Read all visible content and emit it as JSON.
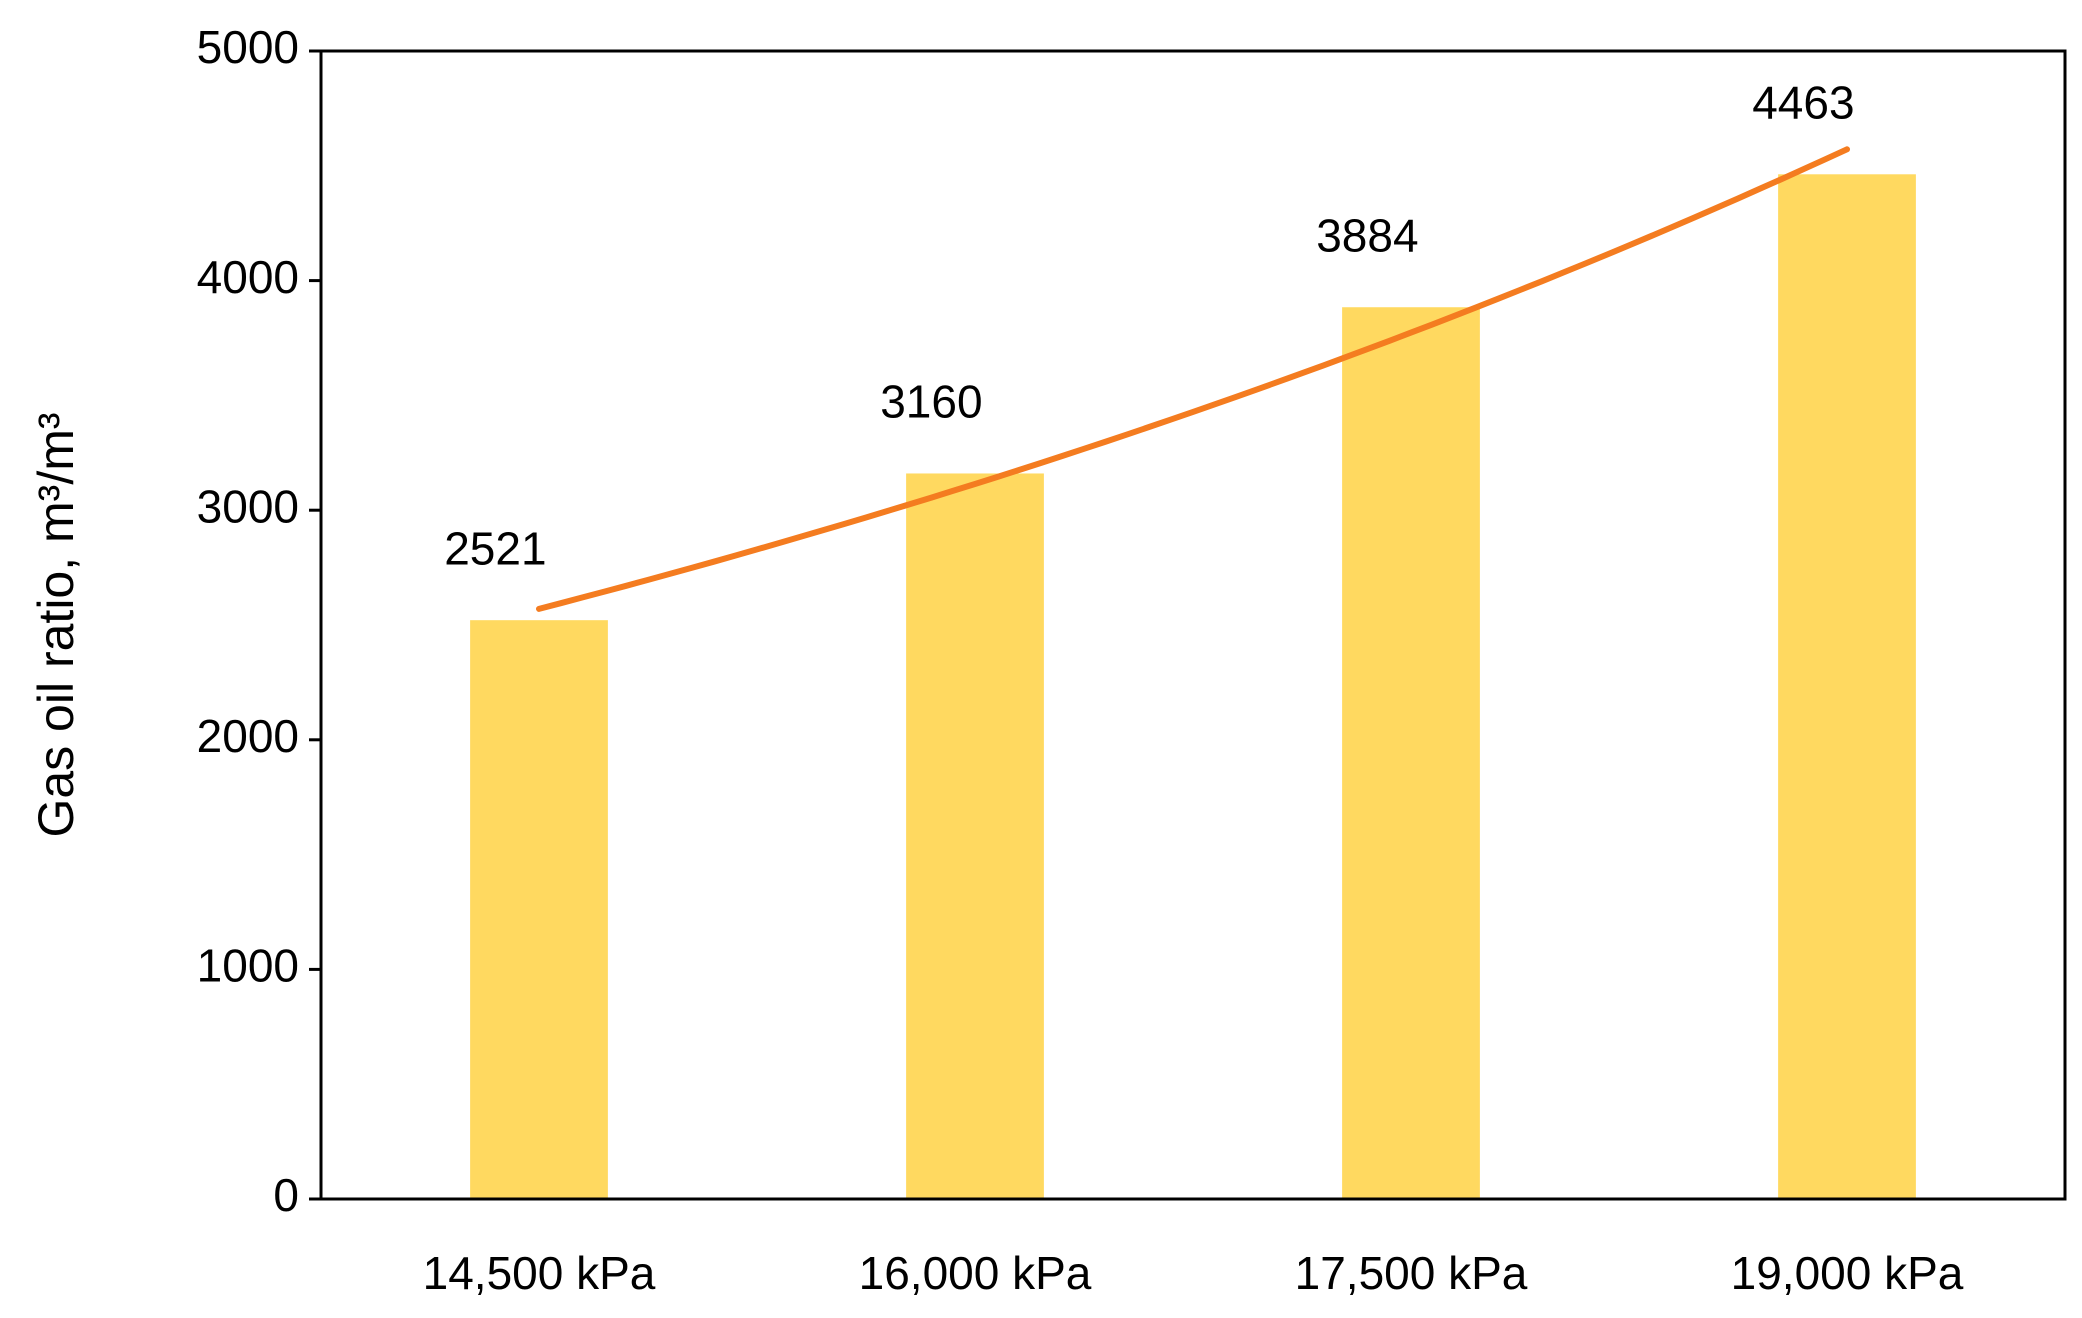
{
  "chart_data": {
    "type": "bar",
    "y_label": "Gas oil ratio, m³/m³",
    "categories": [
      "14,500 kPa",
      "16,000 kPa",
      "17,500 kPa",
      "19,000 kPa"
    ],
    "values": [
      2521,
      3160,
      3884,
      4463
    ],
    "color": "#ffd960",
    "data_labels": true,
    "trendline": {
      "type": "exponential",
      "color": "#f47c20"
    },
    "ylim": [
      0,
      5000
    ],
    "yticks": [
      0,
      1000,
      2000,
      3000,
      4000,
      5000
    ],
    "grid": false
  }
}
